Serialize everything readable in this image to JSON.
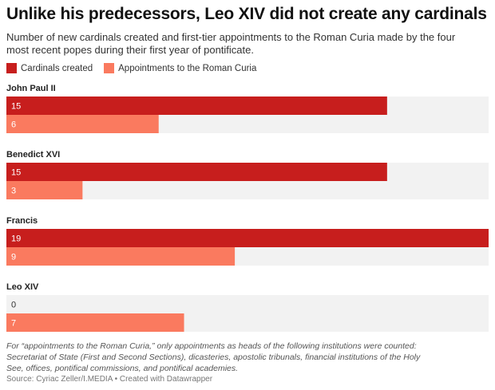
{
  "chart_data": {
    "type": "bar",
    "title": "Unlike his predecessors, Leo XIV did not create any cardinals",
    "subtitle": "Number of new cardinals created and first-tier appointments to the Roman Curia made by the four most recent popes during their first year of pontificate.",
    "categories": [
      "John Paul II",
      "Benedict XVI",
      "Francis",
      "Leo XIV"
    ],
    "series": [
      {
        "name": "Cardinals created",
        "color": "#c71e1d",
        "values": [
          15,
          15,
          19,
          0
        ]
      },
      {
        "name": "Appointments to the Roman Curia",
        "color": "#fa7a5f",
        "values": [
          6,
          3,
          9,
          7
        ]
      }
    ],
    "note": "For “appointments to the Roman Curia,” only appointments as heads of the following institutions were counted: Secretariat of State (First and Second Sections), dicasteries, apostolic tribunals, financial institutions of the Holy See, offices, pontifical commissions, and pontifical academies.",
    "source": "Source: Cyriac Zeller/I.MEDIA • Created with Datawrapper"
  }
}
